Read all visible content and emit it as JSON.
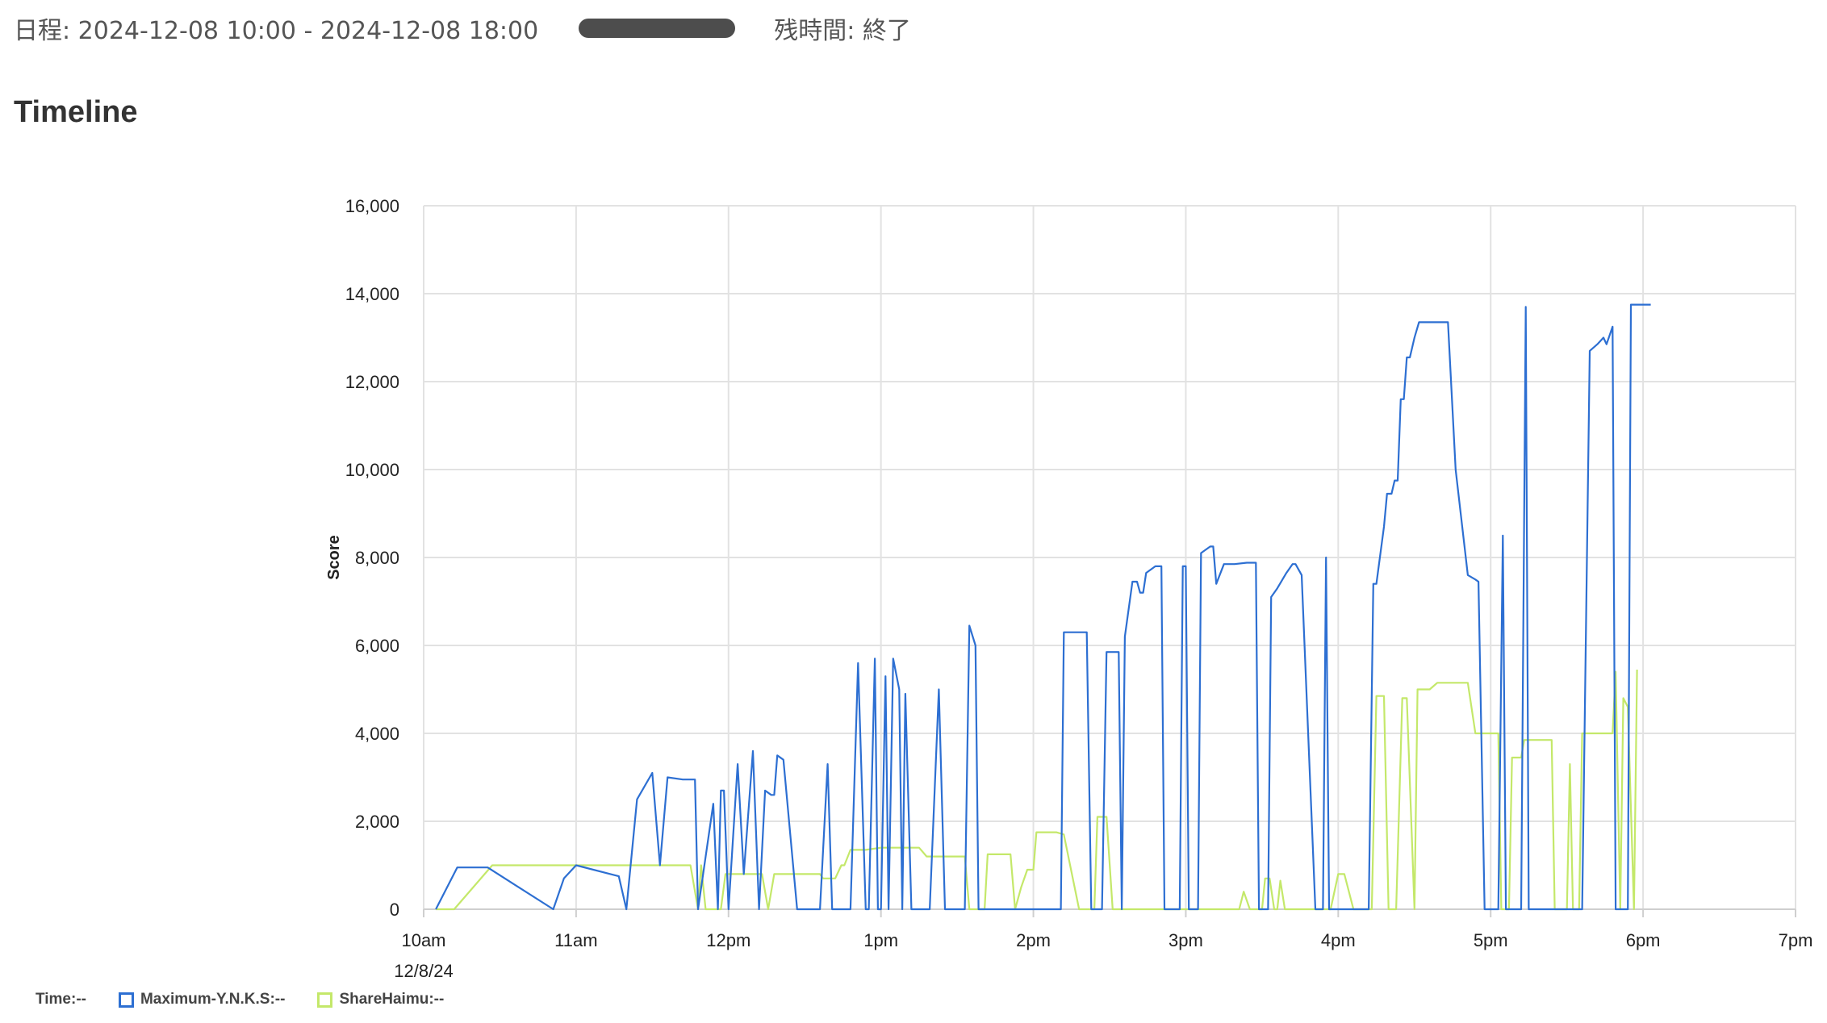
{
  "header": {
    "schedule_label": "日程: 2024-12-08 10:00 - 2024-12-08 18:00",
    "remaining_label": "残時間: 終了"
  },
  "section_title": "Timeline",
  "legend": {
    "time": "Time:--",
    "items": [
      {
        "label": "Maximum-Y.N.K.S:--",
        "color": "#2d6fd2"
      },
      {
        "label": "ShareHaimu:--",
        "color": "#c4e86a"
      }
    ]
  },
  "chart_data": {
    "type": "line",
    "title": "",
    "xlabel": "",
    "ylabel": "Score",
    "x_unit": "hour of day (10 = 10am)",
    "xlim": [
      10,
      19
    ],
    "ylim": [
      0,
      16000
    ],
    "x_ticks": [
      {
        "x": 10,
        "label": "10am",
        "sub": "12/8/24"
      },
      {
        "x": 11,
        "label": "11am",
        "sub": ""
      },
      {
        "x": 12,
        "label": "12pm",
        "sub": ""
      },
      {
        "x": 13,
        "label": "1pm",
        "sub": ""
      },
      {
        "x": 14,
        "label": "2pm",
        "sub": ""
      },
      {
        "x": 15,
        "label": "3pm",
        "sub": ""
      },
      {
        "x": 16,
        "label": "4pm",
        "sub": ""
      },
      {
        "x": 17,
        "label": "5pm",
        "sub": ""
      },
      {
        "x": 18,
        "label": "6pm",
        "sub": ""
      },
      {
        "x": 19,
        "label": "7pm",
        "sub": ""
      }
    ],
    "y_ticks": [
      {
        "y": 0,
        "label": "0"
      },
      {
        "y": 2000,
        "label": "2,000"
      },
      {
        "y": 4000,
        "label": "4,000"
      },
      {
        "y": 6000,
        "label": "6,000"
      },
      {
        "y": 8000,
        "label": "8,000"
      },
      {
        "y": 10000,
        "label": "10,000"
      },
      {
        "y": 12000,
        "label": "12,000"
      },
      {
        "y": 14000,
        "label": "14,000"
      },
      {
        "y": 16000,
        "label": "16,000"
      }
    ],
    "grid": true,
    "legend_position": "bottom-left",
    "series": [
      {
        "name": "Maximum-Y.N.K.S",
        "color": "#2d6fd2",
        "points": [
          [
            10.08,
            0
          ],
          [
            10.22,
            950
          ],
          [
            10.42,
            950
          ],
          [
            10.85,
            0
          ],
          [
            10.92,
            700
          ],
          [
            11.0,
            1000
          ],
          [
            11.28,
            750
          ],
          [
            11.33,
            0
          ],
          [
            11.4,
            2500
          ],
          [
            11.5,
            3100
          ],
          [
            11.55,
            1000
          ],
          [
            11.6,
            3000
          ],
          [
            11.7,
            2950
          ],
          [
            11.78,
            2950
          ],
          [
            11.8,
            0
          ],
          [
            11.9,
            2400
          ],
          [
            11.93,
            0
          ],
          [
            11.95,
            2700
          ],
          [
            11.97,
            2700
          ],
          [
            12.0,
            0
          ],
          [
            12.06,
            3300
          ],
          [
            12.1,
            800
          ],
          [
            12.16,
            3600
          ],
          [
            12.2,
            0
          ],
          [
            12.24,
            2700
          ],
          [
            12.28,
            2600
          ],
          [
            12.3,
            2600
          ],
          [
            12.32,
            3500
          ],
          [
            12.36,
            3400
          ],
          [
            12.45,
            0
          ],
          [
            12.6,
            0
          ],
          [
            12.65,
            3300
          ],
          [
            12.68,
            0
          ],
          [
            12.8,
            0
          ],
          [
            12.85,
            5600
          ],
          [
            12.9,
            0
          ],
          [
            12.92,
            0
          ],
          [
            12.96,
            5700
          ],
          [
            12.98,
            0
          ],
          [
            13.0,
            0
          ],
          [
            13.03,
            5300
          ],
          [
            13.05,
            0
          ],
          [
            13.08,
            5700
          ],
          [
            13.12,
            5000
          ],
          [
            13.14,
            0
          ],
          [
            13.16,
            4900
          ],
          [
            13.2,
            0
          ],
          [
            13.28,
            0
          ],
          [
            13.32,
            0
          ],
          [
            13.38,
            5000
          ],
          [
            13.42,
            0
          ],
          [
            13.55,
            0
          ],
          [
            13.58,
            6450
          ],
          [
            13.62,
            6000
          ],
          [
            13.64,
            0
          ],
          [
            13.95,
            0
          ],
          [
            14.18,
            0
          ],
          [
            14.2,
            6300
          ],
          [
            14.35,
            6300
          ],
          [
            14.38,
            0
          ],
          [
            14.45,
            0
          ],
          [
            14.48,
            5850
          ],
          [
            14.56,
            5850
          ],
          [
            14.58,
            0
          ],
          [
            14.6,
            6200
          ],
          [
            14.65,
            7450
          ],
          [
            14.68,
            7450
          ],
          [
            14.7,
            7200
          ],
          [
            14.72,
            7200
          ],
          [
            14.74,
            7650
          ],
          [
            14.78,
            7750
          ],
          [
            14.8,
            7800
          ],
          [
            14.84,
            7800
          ],
          [
            14.86,
            0
          ],
          [
            14.96,
            0
          ],
          [
            14.98,
            7800
          ],
          [
            15.0,
            7800
          ],
          [
            15.02,
            0
          ],
          [
            15.08,
            0
          ],
          [
            15.1,
            8100
          ],
          [
            15.16,
            8250
          ],
          [
            15.18,
            8250
          ],
          [
            15.2,
            7400
          ],
          [
            15.25,
            7850
          ],
          [
            15.32,
            7850
          ],
          [
            15.4,
            7880
          ],
          [
            15.46,
            7880
          ],
          [
            15.48,
            0
          ],
          [
            15.54,
            0
          ],
          [
            15.56,
            7100
          ],
          [
            15.6,
            7300
          ],
          [
            15.66,
            7650
          ],
          [
            15.7,
            7850
          ],
          [
            15.72,
            7850
          ],
          [
            15.76,
            7600
          ],
          [
            15.85,
            0
          ],
          [
            15.9,
            0
          ],
          [
            15.92,
            8000
          ],
          [
            15.94,
            0
          ],
          [
            16.15,
            0
          ],
          [
            16.2,
            0
          ],
          [
            16.23,
            7400
          ],
          [
            16.25,
            7400
          ],
          [
            16.3,
            8700
          ],
          [
            16.32,
            9450
          ],
          [
            16.35,
            9450
          ],
          [
            16.37,
            9750
          ],
          [
            16.39,
            9750
          ],
          [
            16.41,
            11600
          ],
          [
            16.43,
            11600
          ],
          [
            16.45,
            12550
          ],
          [
            16.47,
            12550
          ],
          [
            16.5,
            13000
          ],
          [
            16.53,
            13350
          ],
          [
            16.58,
            13350
          ],
          [
            16.67,
            13350
          ],
          [
            16.72,
            13350
          ],
          [
            16.77,
            10000
          ],
          [
            16.85,
            7600
          ],
          [
            16.9,
            7500
          ],
          [
            16.92,
            7450
          ],
          [
            16.96,
            0
          ],
          [
            17.05,
            0
          ],
          [
            17.08,
            8500
          ],
          [
            17.1,
            0
          ],
          [
            17.2,
            0
          ],
          [
            17.23,
            13700
          ],
          [
            17.25,
            0
          ],
          [
            17.35,
            0
          ],
          [
            17.45,
            0
          ],
          [
            17.55,
            0
          ],
          [
            17.6,
            0
          ],
          [
            17.65,
            12700
          ],
          [
            17.7,
            12850
          ],
          [
            17.74,
            13000
          ],
          [
            17.76,
            12850
          ],
          [
            17.8,
            13250
          ],
          [
            17.82,
            0
          ],
          [
            17.88,
            0
          ],
          [
            17.9,
            0
          ],
          [
            17.92,
            13750
          ],
          [
            17.96,
            13750
          ],
          [
            18.05,
            13750
          ]
        ]
      },
      {
        "name": "ShareHaimu",
        "color": "#c4e86a",
        "points": [
          [
            10.08,
            0
          ],
          [
            10.2,
            0
          ],
          [
            10.45,
            1000
          ],
          [
            11.45,
            1000
          ],
          [
            11.75,
            1000
          ],
          [
            11.8,
            0
          ],
          [
            11.82,
            1000
          ],
          [
            11.85,
            0
          ],
          [
            11.95,
            0
          ],
          [
            11.98,
            800
          ],
          [
            12.22,
            800
          ],
          [
            12.26,
            0
          ],
          [
            12.3,
            800
          ],
          [
            12.6,
            800
          ],
          [
            12.62,
            700
          ],
          [
            12.7,
            700
          ],
          [
            12.74,
            1000
          ],
          [
            12.76,
            1000
          ],
          [
            12.8,
            1350
          ],
          [
            12.9,
            1350
          ],
          [
            13.0,
            1400
          ],
          [
            13.25,
            1400
          ],
          [
            13.3,
            1200
          ],
          [
            13.5,
            1200
          ],
          [
            13.55,
            1200
          ],
          [
            13.58,
            0
          ],
          [
            13.68,
            0
          ],
          [
            13.7,
            1250
          ],
          [
            13.85,
            1250
          ],
          [
            13.88,
            0
          ],
          [
            13.92,
            500
          ],
          [
            13.96,
            900
          ],
          [
            14.0,
            900
          ],
          [
            14.02,
            1750
          ],
          [
            14.15,
            1750
          ],
          [
            14.2,
            1700
          ],
          [
            14.3,
            0
          ],
          [
            14.4,
            0
          ],
          [
            14.42,
            2100
          ],
          [
            14.48,
            2100
          ],
          [
            14.52,
            0
          ],
          [
            15.35,
            0
          ],
          [
            15.38,
            400
          ],
          [
            15.42,
            0
          ],
          [
            15.5,
            0
          ],
          [
            15.52,
            700
          ],
          [
            15.55,
            700
          ],
          [
            15.58,
            0
          ],
          [
            15.6,
            0
          ],
          [
            15.62,
            650
          ],
          [
            15.65,
            0
          ],
          [
            15.95,
            0
          ],
          [
            16.0,
            800
          ],
          [
            16.04,
            800
          ],
          [
            16.1,
            0
          ],
          [
            16.22,
            0
          ],
          [
            16.25,
            4850
          ],
          [
            16.3,
            4850
          ],
          [
            16.33,
            0
          ],
          [
            16.38,
            0
          ],
          [
            16.42,
            4800
          ],
          [
            16.45,
            4800
          ],
          [
            16.5,
            0
          ],
          [
            16.52,
            5000
          ],
          [
            16.6,
            5000
          ],
          [
            16.65,
            5150
          ],
          [
            16.8,
            5150
          ],
          [
            16.85,
            5150
          ],
          [
            16.9,
            4000
          ],
          [
            17.05,
            4000
          ],
          [
            17.07,
            0
          ],
          [
            17.12,
            0
          ],
          [
            17.14,
            3450
          ],
          [
            17.2,
            3450
          ],
          [
            17.22,
            3850
          ],
          [
            17.4,
            3850
          ],
          [
            17.42,
            0
          ],
          [
            17.5,
            0
          ],
          [
            17.52,
            3300
          ],
          [
            17.54,
            0
          ],
          [
            17.58,
            0
          ],
          [
            17.6,
            4000
          ],
          [
            17.75,
            4000
          ],
          [
            17.8,
            4000
          ],
          [
            17.82,
            5400
          ],
          [
            17.85,
            0
          ],
          [
            17.87,
            4800
          ],
          [
            17.9,
            4600
          ],
          [
            17.94,
            0
          ],
          [
            17.96,
            5450
          ]
        ]
      }
    ]
  }
}
